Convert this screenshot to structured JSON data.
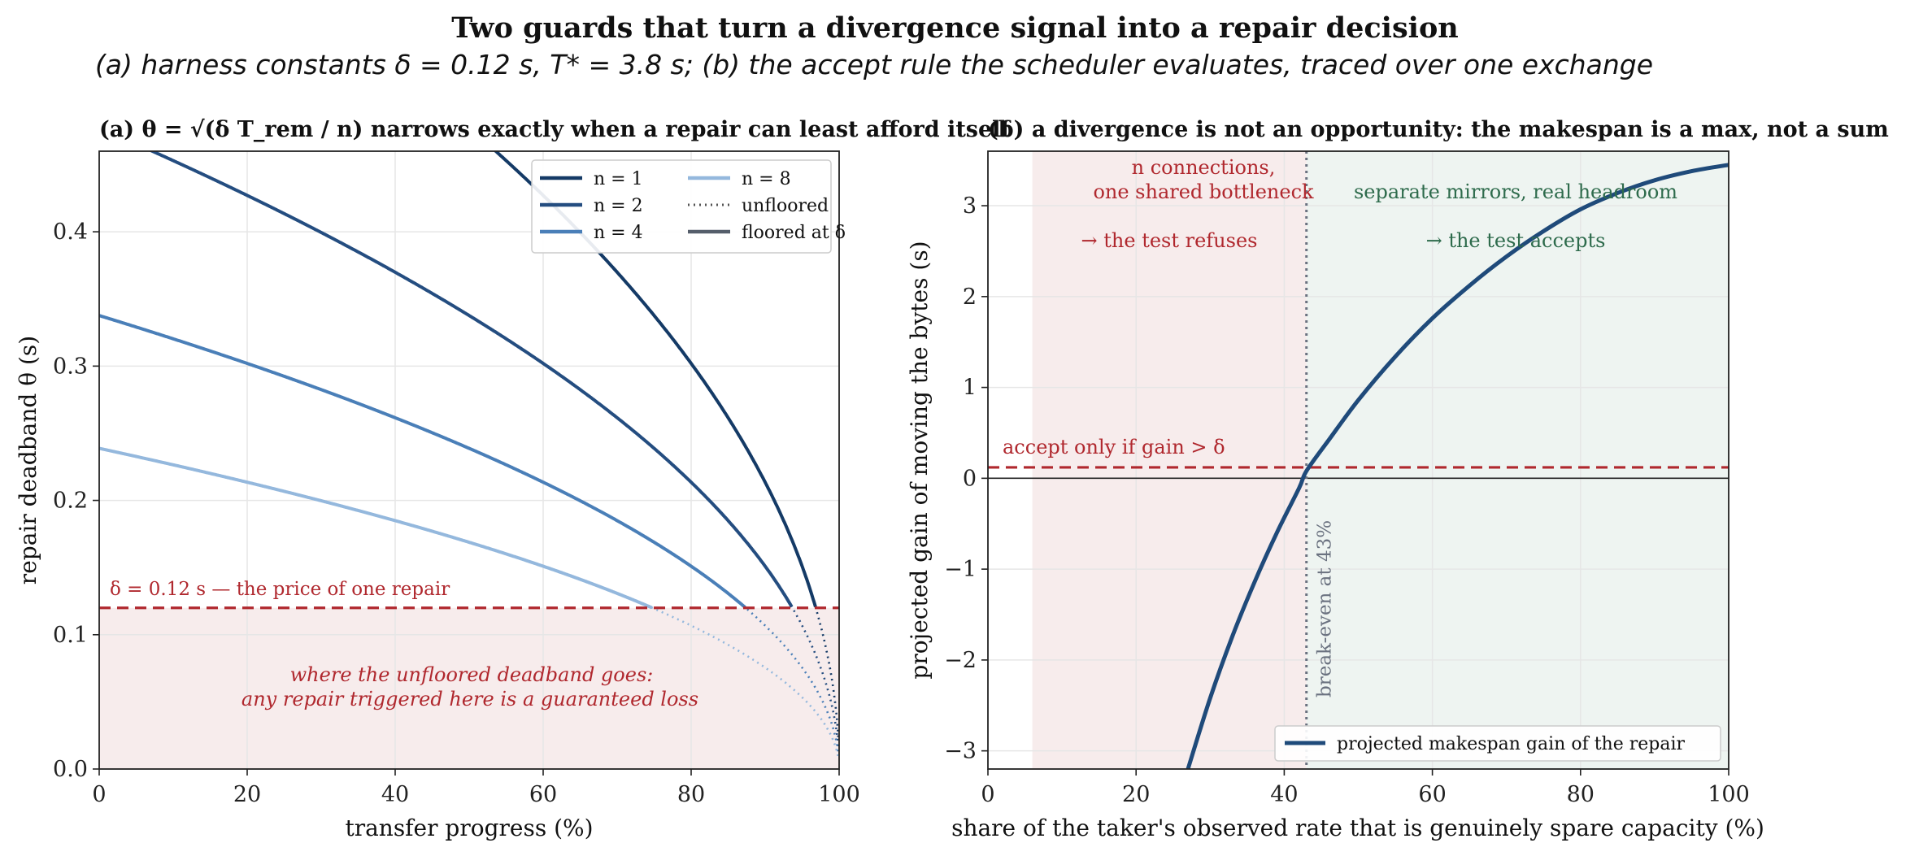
{
  "figure": {
    "title": "Two guards that turn a divergence signal into a repair decision",
    "subtitle": "(a) harness constants δ = 0.12 s,  T* = 3.8 s;  (b) the accept rule the scheduler evaluates,  traced over one exchange"
  },
  "colors": {
    "n1": "#143a66",
    "n2": "#244d80",
    "n4": "#4a7fb8",
    "n8": "#94b8dd",
    "delta": "#b0282e",
    "reject_fill": "#f7ecec",
    "accept_fill": "#eef4f1",
    "accept_text": "#2e6b4c",
    "breakeven": "#6b7280",
    "gain": "#1f4a7a"
  },
  "chart_data": [
    {
      "type": "line",
      "title": "(a)  θ = √(δ T_rem / n) narrows exactly when a repair can least afford itself",
      "xlabel": "transfer progress (%)",
      "ylabel": "repair deadband  θ  (s)",
      "xlim": [
        0,
        100
      ],
      "ylim": [
        0,
        0.46
      ],
      "xticks": [
        "0",
        "20",
        "40",
        "60",
        "80",
        "100"
      ],
      "yticks": [
        "0.0",
        "0.1",
        "0.2",
        "0.3",
        "0.4"
      ],
      "grid": true,
      "legend_position": "top-right",
      "delta": 0.12,
      "T_total": 3.8,
      "series": [
        {
          "name": "n = 1",
          "n": 1
        },
        {
          "name": "n = 2",
          "n": 2
        },
        {
          "name": "n = 4",
          "n": 4
        },
        {
          "name": "n = 8",
          "n": 8
        }
      ],
      "legend_style_entries": [
        "unfloored",
        "floored at δ"
      ],
      "delta_label": "δ = 0.12 s — the price of one repair",
      "region_annotation": [
        "where the unfloored deadband goes:",
        "any repair triggered here is a guaranteed loss"
      ]
    },
    {
      "type": "line",
      "title": "(b)  a divergence is not an opportunity: the makespan is a max, not a sum",
      "xlabel": "share of the taker's observed rate that is genuinely spare capacity (%)",
      "ylabel": "projected gain of moving the bytes (s)",
      "xlim": [
        0,
        100
      ],
      "ylim": [
        -3.2,
        3.6
      ],
      "xticks": [
        "0",
        "20",
        "40",
        "60",
        "80",
        "100"
      ],
      "yticks": [
        "−3",
        "−2",
        "−1",
        "0",
        "1",
        "2",
        "3"
      ],
      "grid": true,
      "legend_position": "bottom-right",
      "series": [
        {
          "name": "projected makespan gain of the repair",
          "x": [
            27,
            30,
            33,
            36,
            39,
            42,
            43,
            46,
            50,
            55,
            60,
            65,
            70,
            75,
            80,
            85,
            90,
            95,
            100
          ],
          "y": [
            -3.2,
            -2.42,
            -1.74,
            -1.14,
            -0.6,
            -0.11,
            0.08,
            0.42,
            0.86,
            1.34,
            1.76,
            2.12,
            2.44,
            2.72,
            2.96,
            3.14,
            3.28,
            3.38,
            3.45
          ]
        }
      ],
      "accept_threshold": 0.12,
      "accept_label": "accept only if gain  > δ",
      "breakeven_x": 43,
      "breakeven_label": "break-even at 43%",
      "reject_region": [
        6,
        43
      ],
      "accept_region": [
        43,
        100
      ],
      "reject_text": [
        "n connections,",
        "one shared bottleneck",
        "→ the test refuses"
      ],
      "accept_text": [
        "separate mirrors, real headroom",
        "→ the test accepts"
      ]
    }
  ]
}
